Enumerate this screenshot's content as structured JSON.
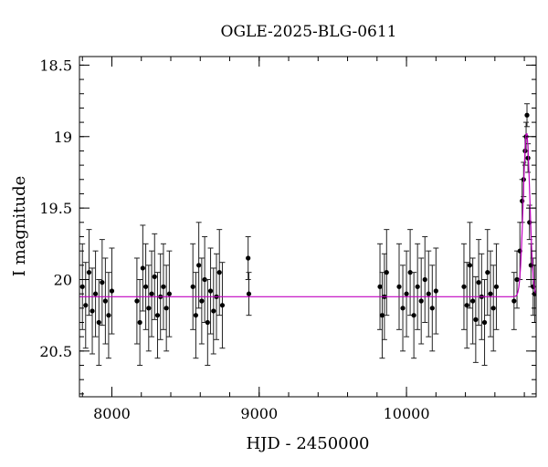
{
  "chart_data": {
    "type": "scatter",
    "title": "OGLE-2025-BLG-0611",
    "xlabel": "HJD - 2450000",
    "ylabel": "I magnitude",
    "xlim": [
      7780,
      10880
    ],
    "ylim": [
      20.82,
      18.44
    ],
    "y_inverted": true,
    "x_ticks": [
      8000,
      9000,
      10000
    ],
    "x_tick_labels": [
      "8000",
      "9000",
      "10000"
    ],
    "y_ticks": [
      18.5,
      19,
      19.5,
      20,
      20.5
    ],
    "y_tick_labels": [
      "18.5",
      "19",
      "19.5",
      "20",
      "20.5"
    ],
    "grid": false,
    "legend": "none",
    "point_color": "#000000",
    "errorbar_color": "#222222",
    "model_color": "#c000c0",
    "model": {
      "baseline_mag": 20.12,
      "peak_time": 10815,
      "peak_mag": 18.97,
      "time_scale": 22
    },
    "series": [
      {
        "name": "",
        "x": [
          7800,
          7822,
          7845,
          7867,
          7889,
          7912,
          7934,
          7956,
          7978,
          8000,
          8170,
          8190,
          8210,
          8230,
          8250,
          8270,
          8290,
          8310,
          8330,
          8350,
          8370,
          8390,
          8550,
          8570,
          8590,
          8610,
          8630,
          8650,
          8670,
          8690,
          8710,
          8730,
          8750,
          8925,
          8930,
          9820,
          9835,
          9850,
          9865,
          9950,
          9975,
          10000,
          10025,
          10050,
          10075,
          10100,
          10125,
          10150,
          10175,
          10200,
          10390,
          10410,
          10430,
          10450,
          10470,
          10490,
          10510,
          10530,
          10550,
          10570,
          10590,
          10610,
          10730,
          10750,
          10770,
          10785,
          10795,
          10805,
          10812,
          10818,
          10825,
          10835,
          10845,
          10860,
          10870
        ],
        "y": [
          20.05,
          20.18,
          19.95,
          20.22,
          20.1,
          20.3,
          20.02,
          20.15,
          20.25,
          20.08,
          20.15,
          20.3,
          19.92,
          20.05,
          20.2,
          20.1,
          19.98,
          20.25,
          20.12,
          20.05,
          20.2,
          20.1,
          20.05,
          20.25,
          19.9,
          20.15,
          20.0,
          20.3,
          20.08,
          20.22,
          20.12,
          19.95,
          20.18,
          19.85,
          20.1,
          20.05,
          20.25,
          20.12,
          19.95,
          20.05,
          20.2,
          20.1,
          19.95,
          20.25,
          20.05,
          20.15,
          20.0,
          20.1,
          20.2,
          20.08,
          20.05,
          20.18,
          19.9,
          20.15,
          20.28,
          20.02,
          20.12,
          20.3,
          19.95,
          20.1,
          20.2,
          20.05,
          20.15,
          20.0,
          19.8,
          19.45,
          19.3,
          19.1,
          19.0,
          18.85,
          19.15,
          19.6,
          19.9,
          20.05,
          20.1
        ],
        "err": [
          0.3,
          0.3,
          0.3,
          0.3,
          0.3,
          0.3,
          0.3,
          0.3,
          0.3,
          0.3,
          0.3,
          0.3,
          0.3,
          0.3,
          0.3,
          0.3,
          0.3,
          0.3,
          0.3,
          0.3,
          0.3,
          0.3,
          0.3,
          0.3,
          0.3,
          0.3,
          0.3,
          0.3,
          0.3,
          0.3,
          0.3,
          0.3,
          0.3,
          0.15,
          0.15,
          0.3,
          0.3,
          0.3,
          0.3,
          0.3,
          0.3,
          0.3,
          0.3,
          0.3,
          0.3,
          0.3,
          0.3,
          0.3,
          0.3,
          0.3,
          0.3,
          0.3,
          0.3,
          0.3,
          0.3,
          0.3,
          0.3,
          0.3,
          0.3,
          0.3,
          0.3,
          0.3,
          0.2,
          0.2,
          0.2,
          0.15,
          0.12,
          0.1,
          0.1,
          0.08,
          0.1,
          0.12,
          0.15,
          0.2,
          0.2
        ]
      }
    ]
  }
}
